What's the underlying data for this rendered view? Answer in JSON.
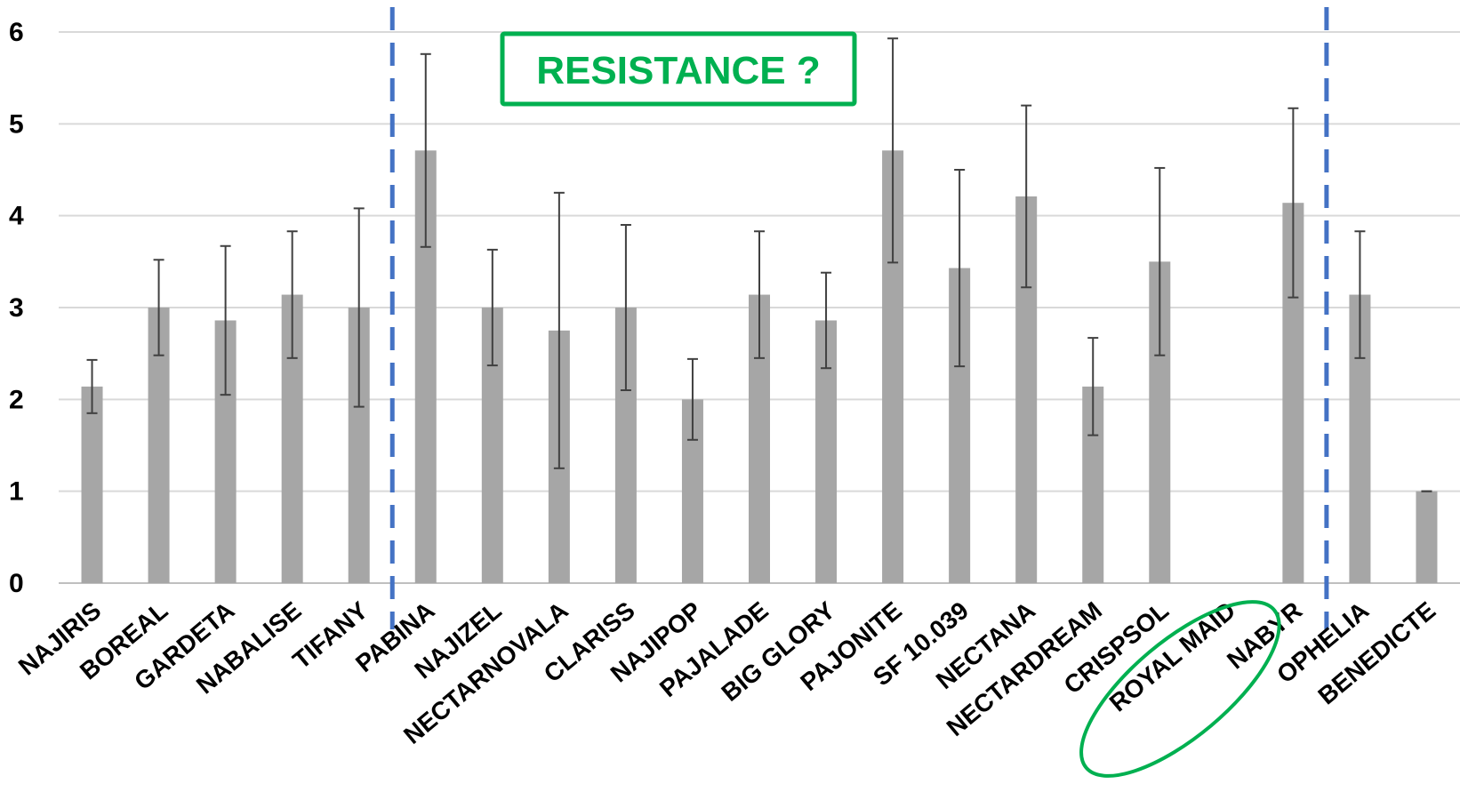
{
  "chart_data": {
    "type": "bar",
    "categories": [
      "NAJIRIS",
      "BOREAL",
      "GARDETA",
      "NABALISE",
      "TIFANY",
      "PABINA",
      "NAJIZEL",
      "NECTARNOVALA",
      "CLARISS",
      "NAJIPOP",
      "PAJALADE",
      "BIG GLORY",
      "PAJONITE",
      "SF 10.039",
      "NECTANA",
      "NECTARDREAM",
      "CRISPSOL",
      "ROYAL MAID",
      "NABYR",
      "OPHELIA",
      "BENEDICTE"
    ],
    "values": [
      2.14,
      3.0,
      2.86,
      3.14,
      3.0,
      4.71,
      3.0,
      2.75,
      3.0,
      2.0,
      3.14,
      2.86,
      4.71,
      3.43,
      4.21,
      2.14,
      3.5,
      null,
      4.14,
      3.14,
      1.0
    ],
    "error": [
      0.29,
      0.52,
      0.81,
      0.69,
      1.08,
      1.05,
      0.63,
      1.5,
      0.9,
      0.44,
      0.69,
      0.52,
      1.22,
      1.07,
      0.99,
      0.53,
      1.02,
      null,
      1.03,
      0.69,
      0.0
    ],
    "ylim": [
      0,
      6
    ],
    "yticks": [
      0,
      1,
      2,
      3,
      4,
      5,
      6
    ],
    "grid": true,
    "bar_color": "#a6a6a6",
    "errorbar_color": "#404040",
    "divider_color": "#4472c4",
    "divider_after": [
      "TIFANY",
      "NABYR"
    ],
    "annotations": {
      "box_label": "RESISTANCE ?",
      "box_color": "#00b050",
      "circled_category": "ROYAL MAID"
    }
  }
}
